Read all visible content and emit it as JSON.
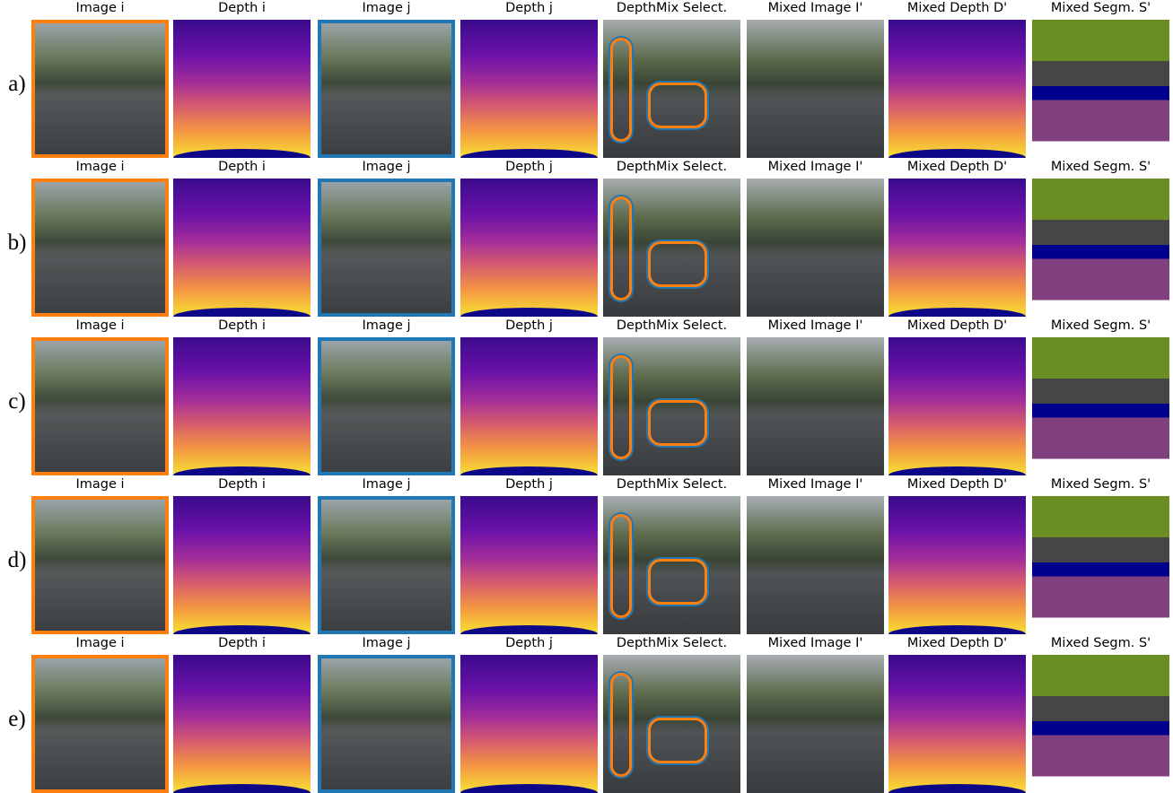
{
  "rows": [
    {
      "label": "a)",
      "panels": [
        "Image i",
        "Depth i",
        "Image j",
        "Depth j",
        "DepthMix Select.",
        "Mixed Image I'",
        "Mixed Depth D'",
        "Mixed Segm. S'"
      ]
    },
    {
      "label": "b)",
      "panels": [
        "Image i",
        "Depth i",
        "Image j",
        "Depth j",
        "DepthMix Select.",
        "Mixed Image I'",
        "Mixed Depth D'",
        "Mixed Segm. S'"
      ]
    },
    {
      "label": "c)",
      "panels": [
        "Image i",
        "Depth i",
        "Image j",
        "Depth j",
        "DepthMix Select.",
        "Mixed Image I'",
        "Mixed Depth D'",
        "Mixed Segm. S'"
      ]
    },
    {
      "label": "d)",
      "panels": [
        "Image i",
        "Depth i",
        "Image j",
        "Depth j",
        "DepthMix Select.",
        "Mixed Image I'",
        "Mixed Depth D'",
        "Mixed Segm. S'"
      ]
    },
    {
      "label": "e)",
      "panels": [
        "Image i",
        "Depth i",
        "Image j",
        "Depth j",
        "DepthMix Select.",
        "Mixed Image I'",
        "Mixed Depth D'",
        "Mixed Segm. S'"
      ]
    }
  ]
}
